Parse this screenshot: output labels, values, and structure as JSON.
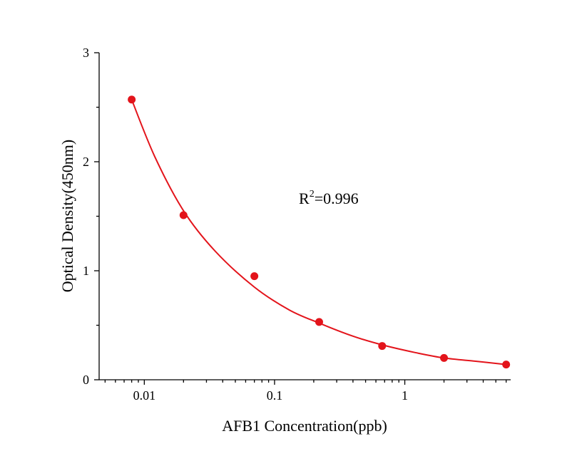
{
  "chart_data": {
    "type": "scatter",
    "x_scale": "log",
    "xlabel": "AFB1 Concentration(ppb)",
    "ylabel": "Optical Density(450nm)",
    "xlim": [
      0.0045,
      6.5
    ],
    "ylim": [
      0,
      3
    ],
    "x_ticks": [
      0.01,
      0.1,
      1
    ],
    "x_tick_labels": [
      "0.01",
      "0.1",
      "1"
    ],
    "y_ticks": [
      0,
      1,
      2,
      3
    ],
    "y_tick_labels": [
      "0",
      "1",
      "2",
      "3"
    ],
    "grid": false,
    "series": [
      {
        "x": [
          0.008,
          0.02,
          0.07,
          0.22,
          0.67,
          2.0,
          6.0
        ],
        "y": [
          2.57,
          1.51,
          0.95,
          0.53,
          0.31,
          0.2,
          0.14
        ]
      }
    ],
    "fit_curve": {
      "x": [
        0.008,
        0.012,
        0.02,
        0.035,
        0.07,
        0.13,
        0.22,
        0.4,
        0.67,
        1.2,
        2.0,
        3.5,
        6.0
      ],
      "y": [
        2.57,
        2.05,
        1.55,
        1.18,
        0.85,
        0.64,
        0.52,
        0.4,
        0.32,
        0.25,
        0.2,
        0.17,
        0.14
      ]
    },
    "annotation": {
      "prefix": "R",
      "superscript": "2",
      "suffix": "=0.996"
    },
    "color": "#e3141b"
  }
}
